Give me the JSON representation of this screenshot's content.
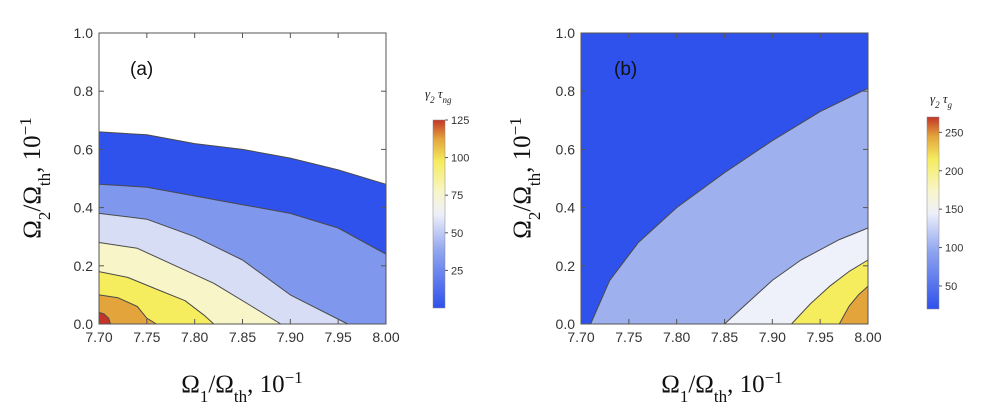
{
  "chart_data": [
    {
      "type": "heatmap",
      "panel_label": "(a)",
      "xlabel": "Ω1/Ωth, 10−1",
      "ylabel": "Ω2/Ωth, 10−1",
      "xlim": [
        7.7,
        8.0
      ],
      "ylim": [
        0.0,
        1.0
      ],
      "x_ticks": [
        "7.70",
        "7.75",
        "7.80",
        "7.85",
        "7.90",
        "7.95",
        "8.00"
      ],
      "y_ticks": [
        "0.0",
        "0.2",
        "0.4",
        "0.6",
        "0.8",
        "1.0"
      ],
      "colorbar": {
        "title": "γ2 τng",
        "range": [
          0,
          125
        ],
        "ticks": [
          "25",
          "50",
          "75",
          "100",
          "125"
        ]
      },
      "contour_levels": [
        {
          "level": 25,
          "color": "#2f51ec",
          "boundary": [
            [
              7.7,
              0.66
            ],
            [
              7.75,
              0.65
            ],
            [
              7.8,
              0.62
            ],
            [
              7.85,
              0.6
            ],
            [
              7.9,
              0.57
            ],
            [
              7.95,
              0.53
            ],
            [
              8.0,
              0.48
            ]
          ]
        },
        {
          "level": 50,
          "color": "#7f98ee",
          "boundary": [
            [
              7.7,
              0.48
            ],
            [
              7.75,
              0.47
            ],
            [
              7.8,
              0.44
            ],
            [
              7.85,
              0.41
            ],
            [
              7.9,
              0.38
            ],
            [
              7.95,
              0.33
            ],
            [
              8.0,
              0.24
            ]
          ]
        },
        {
          "level": 75,
          "color": "#d6ddf5",
          "boundary": [
            [
              7.7,
              0.38
            ],
            [
              7.75,
              0.36
            ],
            [
              7.8,
              0.3
            ],
            [
              7.85,
              0.22
            ],
            [
              7.9,
              0.1
            ],
            [
              7.96,
              0.0
            ]
          ]
        },
        {
          "level": 100,
          "color": "#f8f5c8",
          "boundary": [
            [
              7.7,
              0.28
            ],
            [
              7.74,
              0.26
            ],
            [
              7.78,
              0.2
            ],
            [
              7.82,
              0.14
            ],
            [
              7.86,
              0.06
            ],
            [
              7.89,
              0.0
            ]
          ]
        },
        {
          "level": 112,
          "color": "#f5ec5e",
          "boundary": [
            [
              7.7,
              0.18
            ],
            [
              7.73,
              0.16
            ],
            [
              7.76,
              0.12
            ],
            [
              7.79,
              0.08
            ],
            [
              7.81,
              0.03
            ],
            [
              7.82,
              0.0
            ]
          ]
        },
        {
          "level": 120,
          "color": "#e3a43c",
          "boundary": [
            [
              7.7,
              0.1
            ],
            [
              7.72,
              0.09
            ],
            [
              7.74,
              0.06
            ],
            [
              7.75,
              0.02
            ],
            [
              7.76,
              0.0
            ]
          ]
        },
        {
          "level": 125,
          "color": "#c43527",
          "boundary": [
            [
              7.7,
              0.04
            ],
            [
              7.705,
              0.035
            ],
            [
              7.71,
              0.02
            ],
            [
              7.712,
              0.0
            ]
          ]
        }
      ]
    },
    {
      "type": "heatmap",
      "panel_label": "(b)",
      "xlabel": "Ω1/Ωth, 10−1",
      "ylabel": "Ω2/Ωth, 10−1",
      "xlim": [
        7.7,
        8.0
      ],
      "ylim": [
        0.0,
        1.0
      ],
      "x_ticks": [
        "7.70",
        "7.75",
        "7.80",
        "7.85",
        "7.90",
        "7.95",
        "8.00"
      ],
      "y_ticks": [
        "0.0",
        "0.2",
        "0.4",
        "0.6",
        "0.8",
        "1.0"
      ],
      "colorbar": {
        "title": "γ2 τg",
        "range": [
          20,
          270
        ],
        "ticks": [
          "50",
          "100",
          "150",
          "200",
          "250"
        ]
      },
      "contour_levels": [
        {
          "level": 50,
          "color": "#2f51ec",
          "boundary": null
        },
        {
          "level": 100,
          "color": "#9eb0ee",
          "boundary": [
            [
              7.71,
              0.0
            ],
            [
              7.73,
              0.15
            ],
            [
              7.76,
              0.28
            ],
            [
              7.8,
              0.4
            ],
            [
              7.85,
              0.52
            ],
            [
              7.9,
              0.63
            ],
            [
              7.95,
              0.73
            ],
            [
              8.0,
              0.81
            ]
          ]
        },
        {
          "level": 150,
          "color": "#eef0fa",
          "boundary": [
            [
              7.85,
              0.0
            ],
            [
              7.87,
              0.06
            ],
            [
              7.9,
              0.15
            ],
            [
              7.93,
              0.22
            ],
            [
              7.97,
              0.29
            ],
            [
              8.0,
              0.33
            ]
          ]
        },
        {
          "level": 200,
          "color": "#f5ec5e",
          "boundary": [
            [
              7.92,
              0.0
            ],
            [
              7.94,
              0.07
            ],
            [
              7.96,
              0.13
            ],
            [
              7.98,
              0.18
            ],
            [
              8.0,
              0.22
            ]
          ]
        },
        {
          "level": 250,
          "color": "#e3a43c",
          "boundary": [
            [
              7.97,
              0.0
            ],
            [
              7.98,
              0.06
            ],
            [
              7.99,
              0.1
            ],
            [
              8.0,
              0.13
            ]
          ]
        }
      ]
    }
  ]
}
